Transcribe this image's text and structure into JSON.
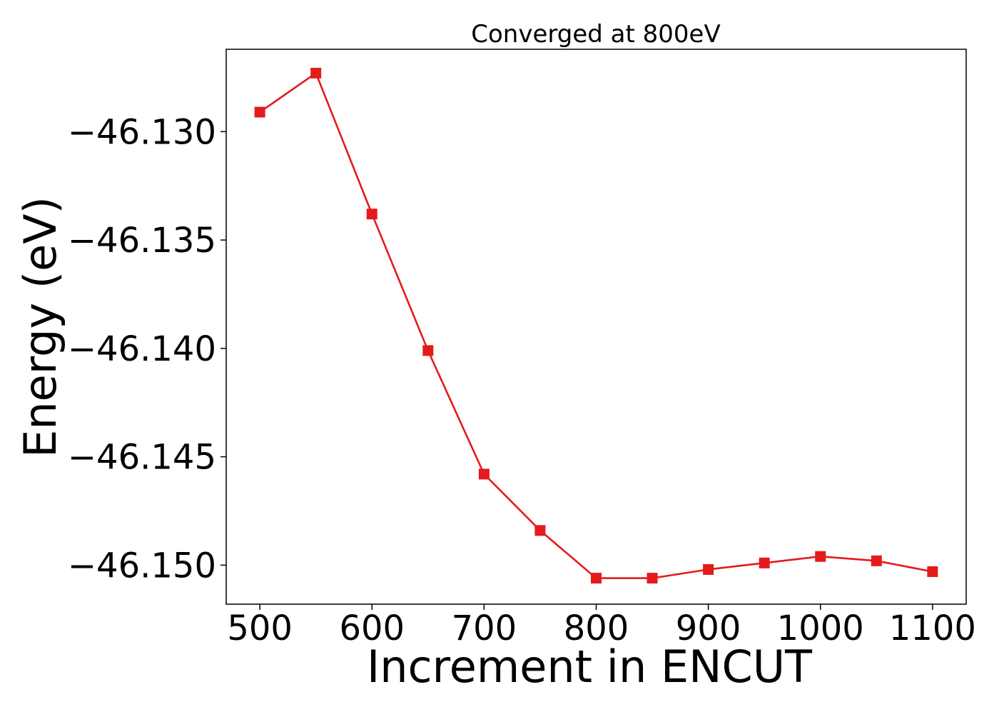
{
  "chart_data": {
    "type": "line",
    "title": "Converged at 800eV",
    "xlabel": "Increment in ENCUT",
    "ylabel": "Energy (eV)",
    "x": [
      500,
      550,
      600,
      650,
      700,
      750,
      800,
      850,
      900,
      950,
      1000,
      1050,
      1100
    ],
    "series": [
      {
        "values": [
          -46.1291,
          -46.1273,
          -46.1338,
          -46.1401,
          -46.1458,
          -46.1484,
          -46.1506,
          -46.1506,
          -46.1502,
          -46.1499,
          -46.1496,
          -46.1498,
          -46.1503
        ],
        "color": "#e41a1c",
        "marker": "square"
      }
    ],
    "xticks": [
      500,
      600,
      700,
      800,
      900,
      1000,
      1100
    ],
    "xtick_labels": [
      "500",
      "600",
      "700",
      "800",
      "900",
      "1000",
      "1100"
    ],
    "yticks": [
      -46.13,
      -46.135,
      -46.14,
      -46.145,
      -46.15
    ],
    "ytick_labels": [
      "−46.130",
      "−46.135",
      "−46.140",
      "−46.145",
      "−46.150"
    ],
    "xlim": [
      470,
      1130
    ],
    "ylim": [
      -46.1518,
      -46.1262
    ],
    "grid": false,
    "legend": false
  }
}
